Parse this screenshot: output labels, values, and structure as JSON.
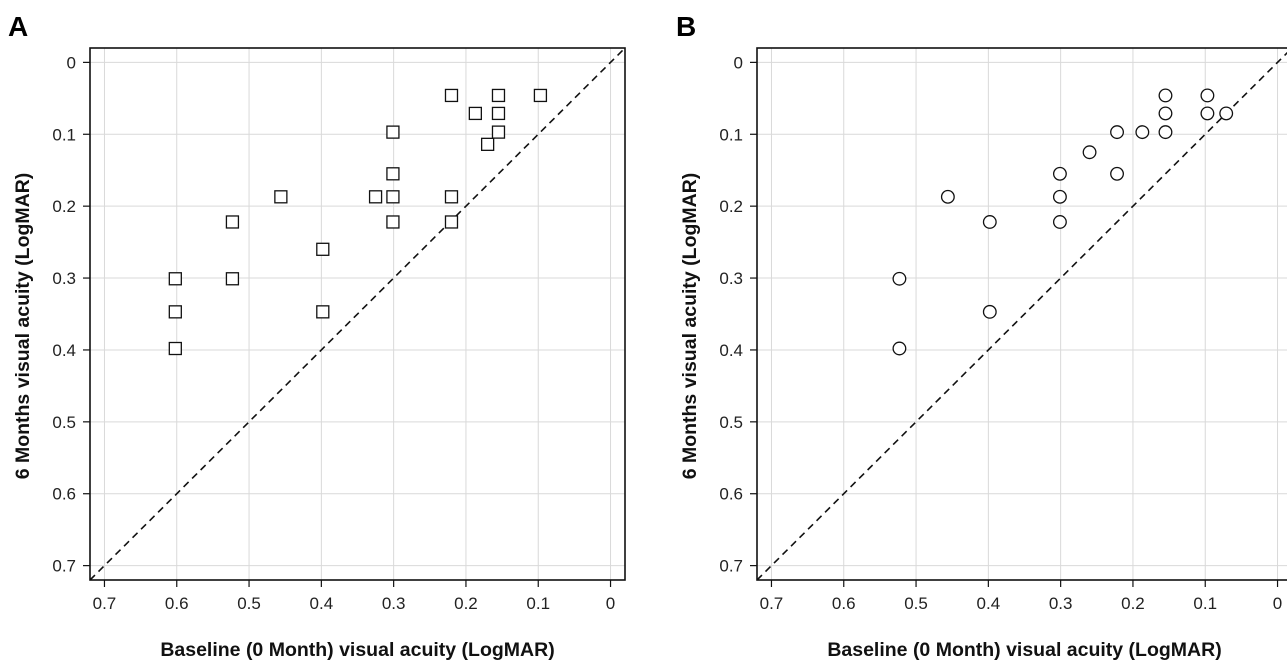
{
  "chart_data": [
    {
      "type": "scatter",
      "panel": "A",
      "xlabel": "Baseline (0 Month) visual acuity (LogMAR)",
      "ylabel": "6 Months visual acuity (LogMAR)",
      "xlim": [
        0.72,
        -0.02
      ],
      "ylim": [
        0.72,
        -0.02
      ],
      "ticks": [
        "0.7",
        "0.6",
        "0.5",
        "0.4",
        "0.3",
        "0.2",
        "0.1",
        "0"
      ],
      "tick_values": [
        0.7,
        0.6,
        0.5,
        0.4,
        0.3,
        0.2,
        0.1,
        0
      ],
      "x_reversed": true,
      "y_reversed": true,
      "grid": true,
      "reference_line": "y = x (dashed)",
      "marker": "square",
      "points": [
        {
          "x": 0.22,
          "y": 0.046
        },
        {
          "x": 0.155,
          "y": 0.046
        },
        {
          "x": 0.097,
          "y": 0.046
        },
        {
          "x": 0.187,
          "y": 0.071
        },
        {
          "x": 0.155,
          "y": 0.071
        },
        {
          "x": 0.301,
          "y": 0.097
        },
        {
          "x": 0.155,
          "y": 0.097
        },
        {
          "x": 0.17,
          "y": 0.114
        },
        {
          "x": 0.301,
          "y": 0.155
        },
        {
          "x": 0.456,
          "y": 0.187
        },
        {
          "x": 0.325,
          "y": 0.187
        },
        {
          "x": 0.301,
          "y": 0.187
        },
        {
          "x": 0.22,
          "y": 0.187
        },
        {
          "x": 0.523,
          "y": 0.222
        },
        {
          "x": 0.301,
          "y": 0.222
        },
        {
          "x": 0.22,
          "y": 0.222
        },
        {
          "x": 0.398,
          "y": 0.26
        },
        {
          "x": 0.602,
          "y": 0.301
        },
        {
          "x": 0.523,
          "y": 0.301
        },
        {
          "x": 0.602,
          "y": 0.347
        },
        {
          "x": 0.398,
          "y": 0.347
        },
        {
          "x": 0.602,
          "y": 0.398
        }
      ]
    },
    {
      "type": "scatter",
      "panel": "B",
      "xlabel": "Baseline (0 Month) visual acuity (LogMAR)",
      "ylabel": "6 Months visual acuity (LogMAR)",
      "xlim": [
        0.72,
        -0.02
      ],
      "ylim": [
        0.72,
        -0.02
      ],
      "ticks": [
        "0.7",
        "0.6",
        "0.5",
        "0.4",
        "0.3",
        "0.2",
        "0.1",
        "0"
      ],
      "tick_values": [
        0.7,
        0.6,
        0.5,
        0.4,
        0.3,
        0.2,
        0.1,
        0
      ],
      "x_reversed": true,
      "y_reversed": true,
      "grid": true,
      "reference_line": "y = x (dashed)",
      "marker": "circle",
      "points": [
        {
          "x": 0.155,
          "y": 0.046
        },
        {
          "x": 0.097,
          "y": 0.046
        },
        {
          "x": 0.155,
          "y": 0.071
        },
        {
          "x": 0.097,
          "y": 0.071
        },
        {
          "x": 0.071,
          "y": 0.071
        },
        {
          "x": 0.222,
          "y": 0.097
        },
        {
          "x": 0.187,
          "y": 0.097
        },
        {
          "x": 0.155,
          "y": 0.097
        },
        {
          "x": 0.26,
          "y": 0.125
        },
        {
          "x": 0.301,
          "y": 0.155
        },
        {
          "x": 0.222,
          "y": 0.155
        },
        {
          "x": 0.456,
          "y": 0.187
        },
        {
          "x": 0.301,
          "y": 0.187
        },
        {
          "x": 0.398,
          "y": 0.222
        },
        {
          "x": 0.301,
          "y": 0.222
        },
        {
          "x": 0.523,
          "y": 0.301
        },
        {
          "x": 0.398,
          "y": 0.347
        },
        {
          "x": 0.523,
          "y": 0.398
        }
      ]
    }
  ]
}
